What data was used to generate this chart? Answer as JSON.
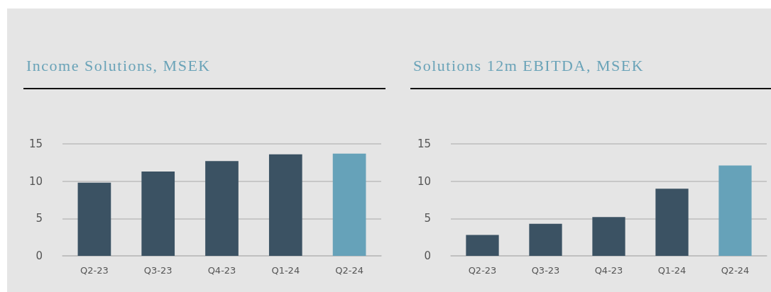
{
  "chart_data": [
    {
      "type": "bar",
      "title": "Income Solutions, MSEK",
      "categories": [
        "Q2-23",
        "Q3-23",
        "Q4-23",
        "Q1-24",
        "Q2-24"
      ],
      "values": [
        9.8,
        11.3,
        12.7,
        13.6,
        13.7
      ],
      "colors": [
        "#3b5263",
        "#3b5263",
        "#3b5263",
        "#3b5263",
        "#66a2b9"
      ],
      "ylim": [
        0,
        15
      ],
      "yticks": [
        0,
        5,
        10,
        15
      ],
      "grid": "y"
    },
    {
      "type": "bar",
      "title": "Solutions 12m EBITDA, MSEK",
      "categories": [
        "Q2-23",
        "Q3-23",
        "Q4-23",
        "Q1-24",
        "Q2-24"
      ],
      "values": [
        2.8,
        4.3,
        5.2,
        9.0,
        12.1
      ],
      "colors": [
        "#3b5263",
        "#3b5263",
        "#3b5263",
        "#3b5263",
        "#66a2b9"
      ],
      "ylim": [
        0,
        15
      ],
      "yticks": [
        0,
        5,
        10,
        15
      ],
      "grid": "y"
    }
  ]
}
